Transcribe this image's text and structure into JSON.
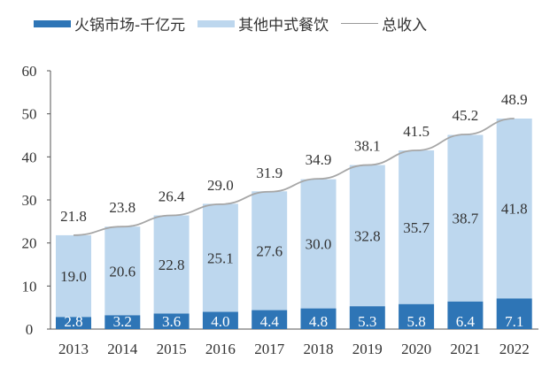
{
  "chart_data": {
    "type": "bar",
    "stacked": true,
    "categories": [
      "2013",
      "2014",
      "2015",
      "2016",
      "2017",
      "2018",
      "2019",
      "2020",
      "2021",
      "2022"
    ],
    "series": [
      {
        "name": "火锅市场-千亿元",
        "type": "bar",
        "color": "#2e75b6",
        "values": [
          2.8,
          3.2,
          3.6,
          4.0,
          4.4,
          4.8,
          5.3,
          5.8,
          6.4,
          7.1
        ]
      },
      {
        "name": "其他中式餐饮",
        "type": "bar",
        "color": "#bdd7ee",
        "values": [
          19.0,
          20.6,
          22.8,
          25.1,
          27.6,
          30.0,
          32.8,
          35.7,
          38.7,
          41.8
        ]
      },
      {
        "name": "总收入",
        "type": "line",
        "color": "#a6a6a6",
        "values": [
          21.8,
          23.8,
          26.4,
          29.0,
          31.9,
          34.9,
          38.1,
          41.5,
          45.2,
          48.9
        ]
      }
    ],
    "ylim": [
      0,
      60
    ],
    "yticks": [
      0,
      10,
      20,
      30,
      40,
      50,
      60
    ],
    "grid": false,
    "legend": "top"
  }
}
